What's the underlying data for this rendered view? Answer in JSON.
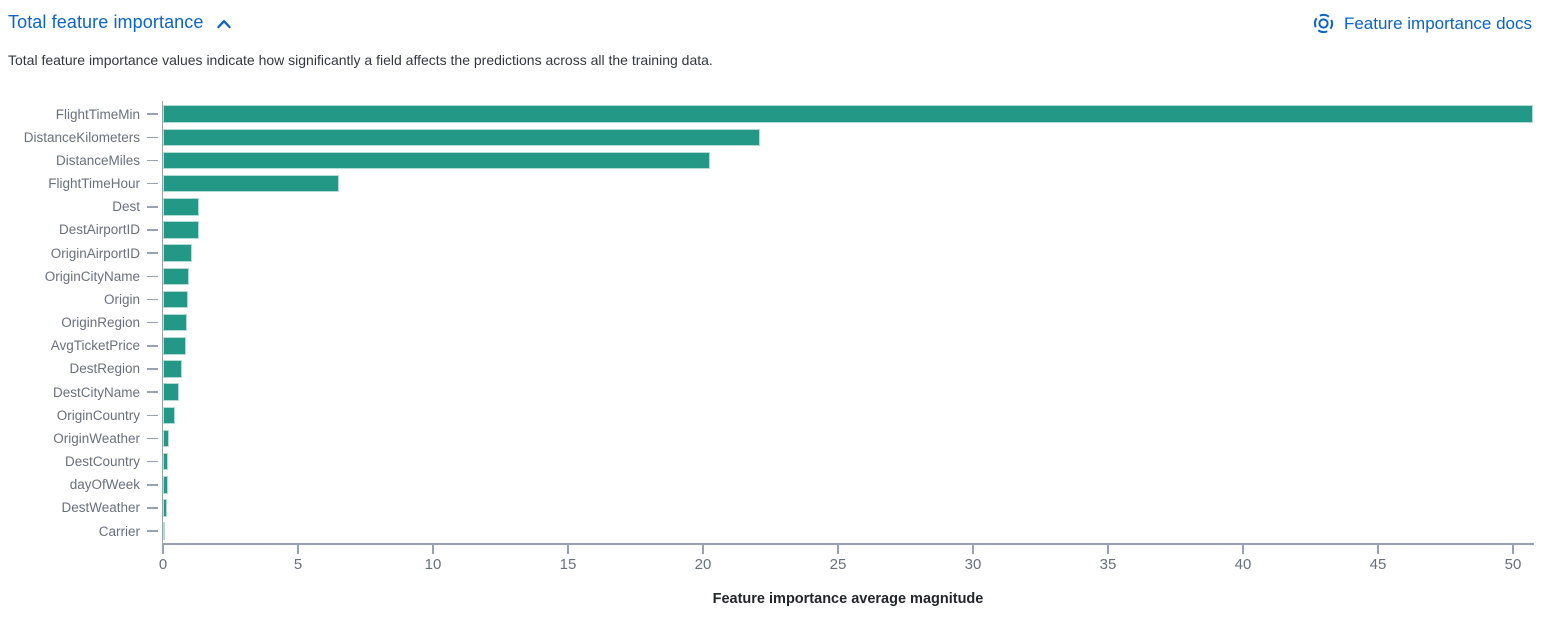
{
  "header": {
    "title": "Total feature importance",
    "collapse_icon": "chevron-up-icon",
    "docs_icon": "lifebuoy-icon",
    "docs_link": "Feature importance docs",
    "description": "Total feature importance values indicate how significantly a field affects the predictions across all the training data.",
    "accent_color": "#0B63C6"
  },
  "chart_data": {
    "type": "bar",
    "orientation": "horizontal",
    "title": "",
    "xlabel": "Feature importance average magnitude",
    "ylabel": "",
    "categories": [
      "FlightTimeMin",
      "DistanceKilometers",
      "DistanceMiles",
      "FlightTimeHour",
      "Dest",
      "DestAirportID",
      "OriginAirportID",
      "OriginCityName",
      "Origin",
      "OriginRegion",
      "AvgTicketPrice",
      "DestRegion",
      "DestCityName",
      "OriginCountry",
      "OriginWeather",
      "DestCountry",
      "dayOfWeek",
      "DestWeather",
      "Carrier"
    ],
    "values": [
      50.74,
      22.1,
      20.25,
      6.5,
      1.35,
      1.32,
      1.09,
      0.98,
      0.94,
      0.89,
      0.85,
      0.72,
      0.61,
      0.45,
      0.22,
      0.2,
      0.17,
      0.14,
      0.06
    ],
    "x_ticks": [
      0,
      5,
      10,
      15,
      20,
      25,
      30,
      35,
      40,
      45,
      50
    ],
    "xlim": [
      0,
      50.74
    ],
    "grid": false,
    "legend": "none",
    "bar_color": "#249886",
    "axis_line_color": "#98A2B3",
    "tick_label_color": "#69707D",
    "category_label_color": "#69707D"
  }
}
